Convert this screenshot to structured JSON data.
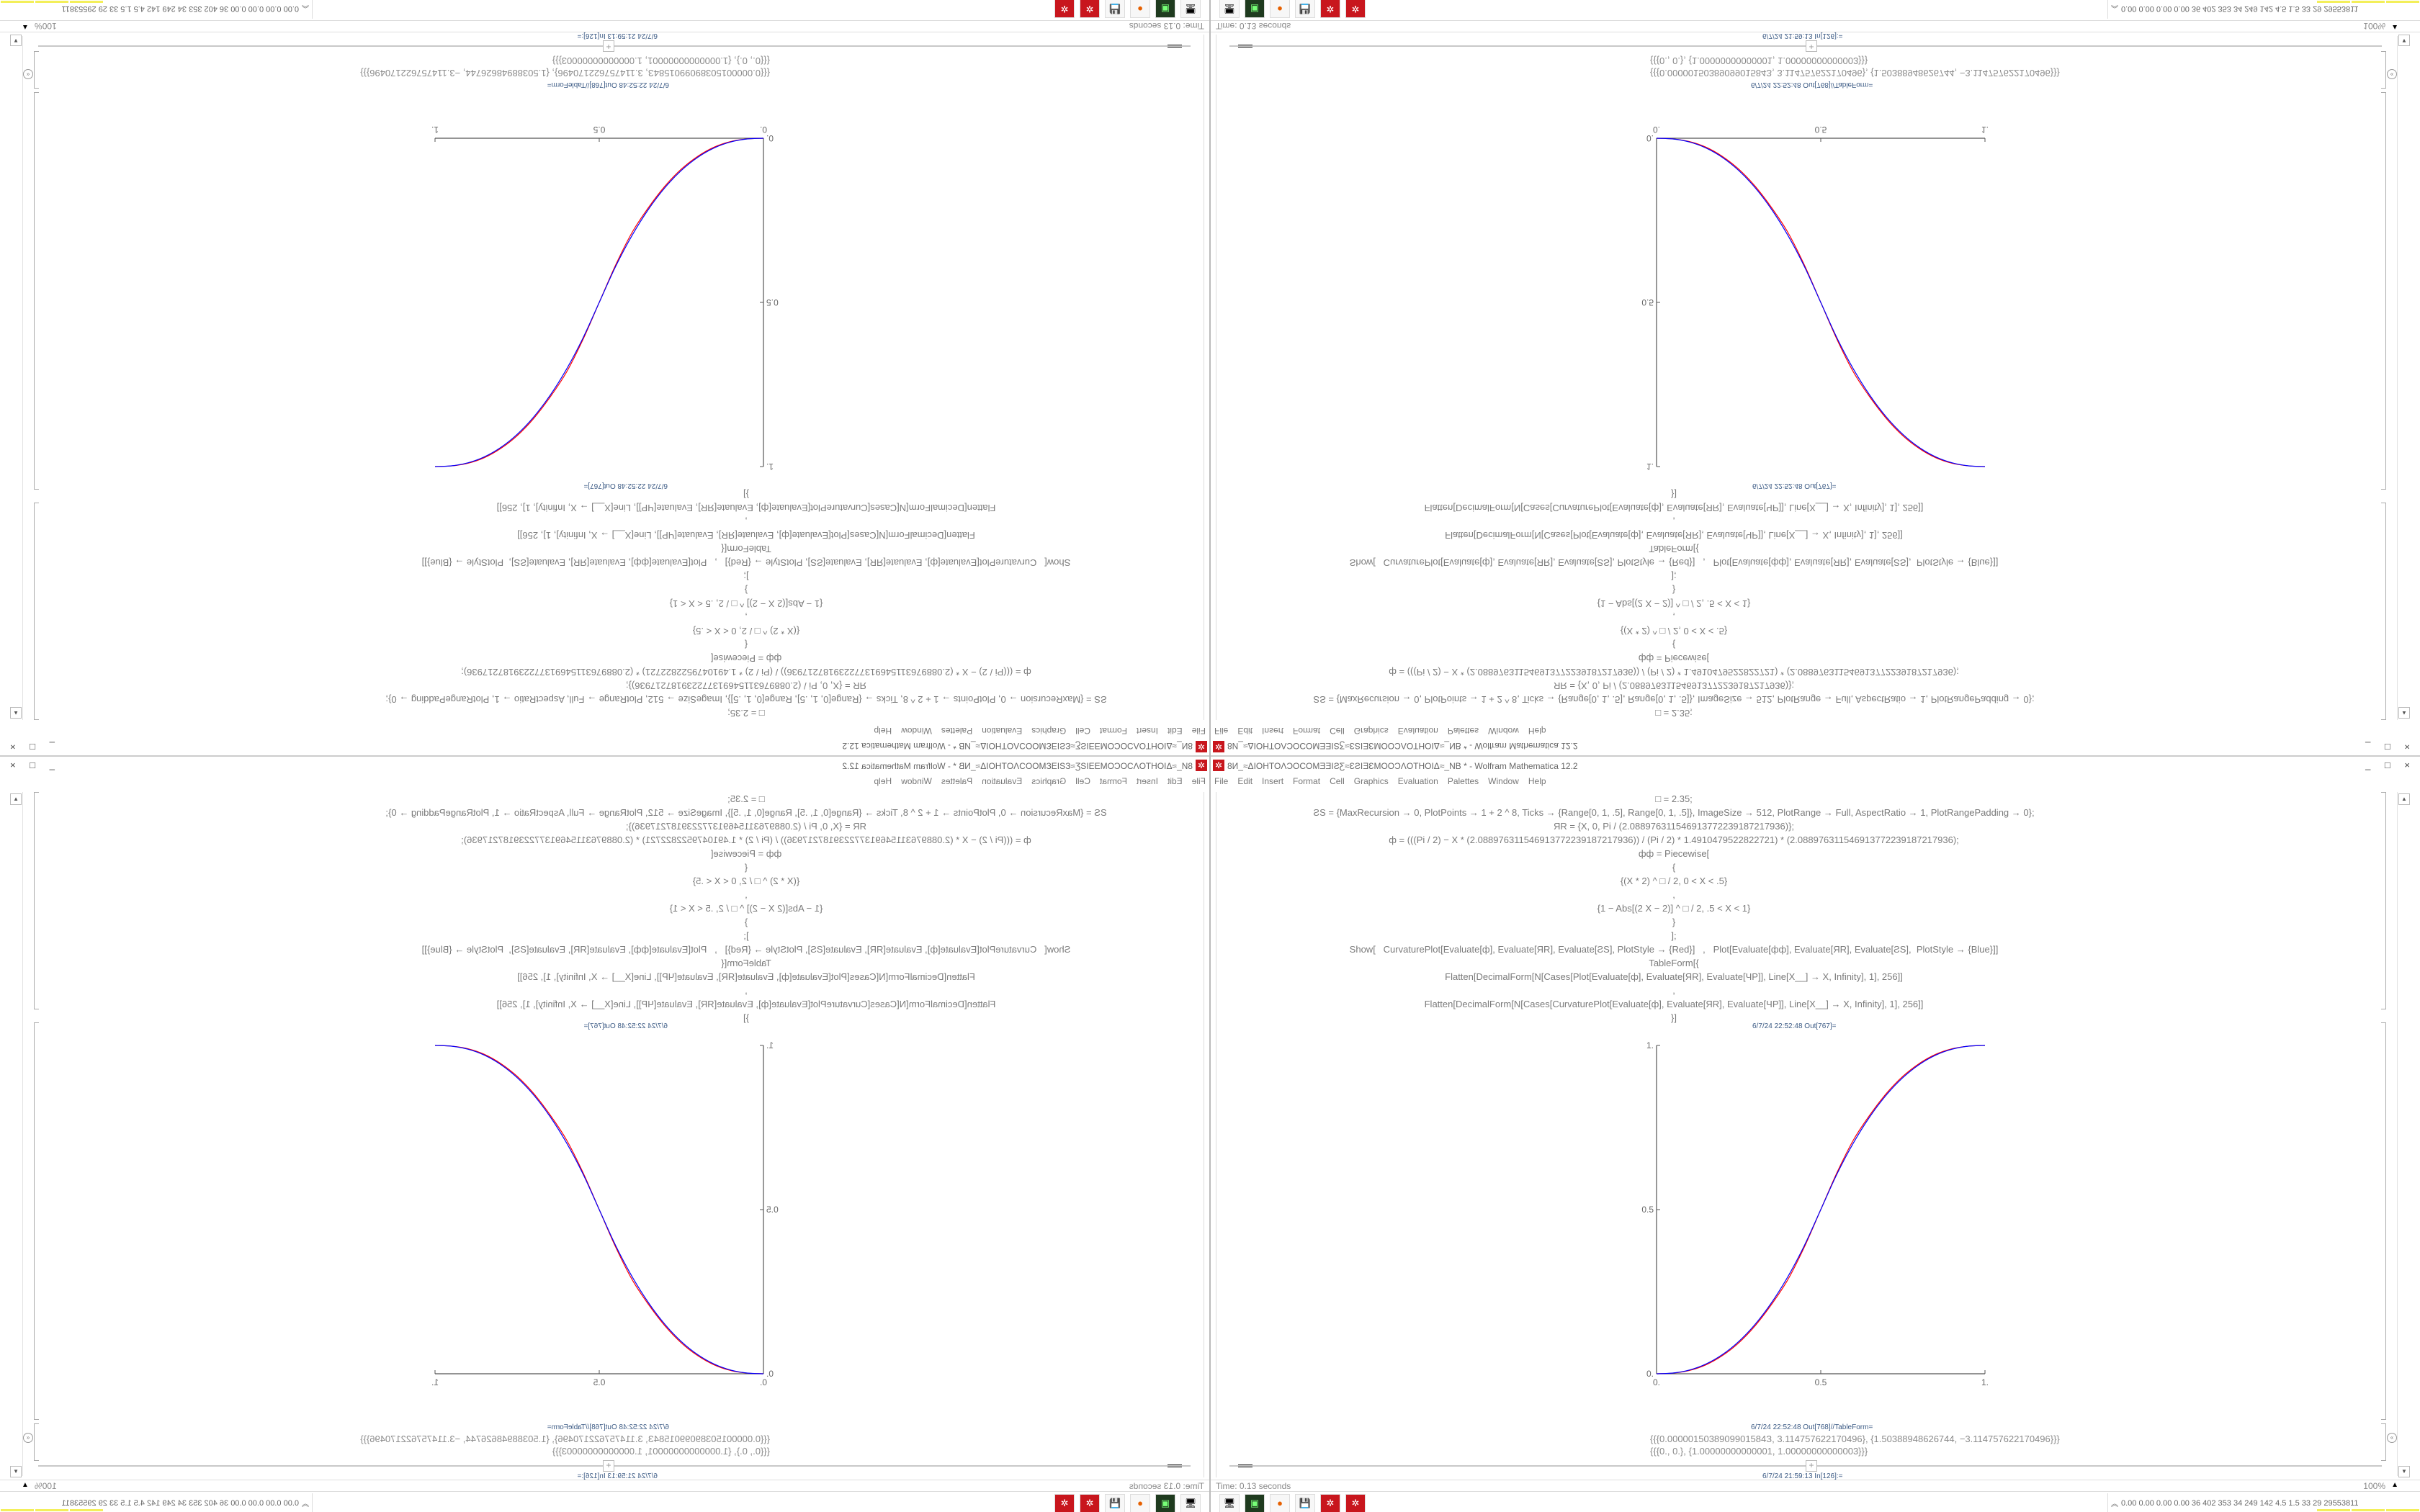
{
  "window": {
    "title": "8И_≈ΔIOHTOΛƆOCOMƎƎIƧƸ≈ƐƧIƎƐMOOƆΛOTHOIΔ≈_NB * - Wolfram Mathematica 12.2",
    "controls": "_ □ ×"
  },
  "menu": [
    "File",
    "Edit",
    "Insert",
    "Format",
    "Cell",
    "Graphics",
    "Evaluation",
    "Palettes",
    "Window",
    "Help"
  ],
  "code_lines": [
    "□ = 2.35;",
    "ƧS = {MaxRecursion → 0, PlotPoints → 1 + 2 ^ 8, Ticks → {Range[0, 1, .5], Range[0, 1, .5]}, ImageSize → 512, PlotRange → Full, AspectRatio → 1, PlotRangePadding → 0};",
    "ЯR = {X, 0, Pi / (2.088976311546913772239187217936)};",
    "ф = (((Pi / 2) − X * (2.088976311546913772239187217936)) / (Pi / 2) * 1.4910479522822721) * (2.088976311546913772239187217936);",
    "фф = Piecewise[",
    "{",
    "{(X * 2) ^ □ / 2, 0 < X < .5}",
    ",",
    "{1 − Abs[(2 X − 2)] ^ □ / 2, .5 < X < 1}",
    "}",
    "];",
    "Show[   CurvaturePlot[Evaluate[ф], Evaluate[ЯR], Evaluate[ƧS], PlotStyle → {Red}]   ,   Plot[Evaluate[фф], Evaluate[ЯR], Evaluate[ƧS],  PlotStyle → {Blue}]]",
    "TableForm[{",
    "Flatten[DecimalForm[N[Cases[Plot[Evaluate[ф], Evaluate[ЯR], Evaluate[ЧP]], Line[X__] → X, Infinity], 1], 256]]",
    ",",
    "Flatten[DecimalForm[N[Cases[CurvaturePlot[Evaluate[ф], Evaluate[ЯR], Evaluate[ЧP]], Line[X__] → X, Infinity], 1], 256]]",
    "}]"
  ],
  "labels": {
    "out767": "6/7/24 22:52:48 Out[767]=",
    "out768": "6/7/24 22:52:48 Out[768]//TableForm=",
    "in126": "6/7/24 21:59:13 In[126]:="
  },
  "output_lines": [
    "{{{0.0000015038909901584З, 3.114757622170496}, {1.50388948626744, −3.114757622170496}}}",
    "{{{0., 0.}, {1.00000000000001, 1.00000000000003}}}"
  ],
  "status": {
    "time": "Time: 0.13 seconds",
    "zoom": "100%"
  },
  "taskbar": {
    "icons": [
      "remote-desktop-icon",
      "terminal-icon",
      "firefox-icon",
      "floppy-64-icon",
      "mathematica-icon",
      "mathematica-icon"
    ],
    "tray_stats": "0.00 0.00 0.00 0.00  36  402  353  34  249  142  4.5  1.5  33  29  29553811"
  },
  "chart_data": {
    "type": "line",
    "x_ticks": [
      "0.",
      "0.5",
      "1."
    ],
    "y_ticks": [
      "0.",
      "0.5",
      "1."
    ],
    "xlim": [
      0,
      1
    ],
    "ylim": [
      0,
      1
    ],
    "grid": false,
    "x": [
      0,
      0.05,
      0.1,
      0.15,
      0.2,
      0.25,
      0.3,
      0.35,
      0.4,
      0.45,
      0.5,
      0.55,
      0.6,
      0.65,
      0.7,
      0.75,
      0.8,
      0.85,
      0.9,
      0.95,
      1
    ],
    "series": [
      {
        "color": "#ff0000",
        "values": [
          0,
          0.002,
          0.01,
          0.027,
          0.055,
          0.094,
          0.146,
          0.211,
          0.287,
          0.386,
          0.5,
          0.614,
          0.713,
          0.789,
          0.854,
          0.906,
          0.945,
          0.973,
          0.99,
          0.998,
          1
        ]
      },
      {
        "color": "#0000ff",
        "values": [
          0,
          0.0022,
          0.0114,
          0.0295,
          0.0581,
          0.0981,
          0.1505,
          0.2163,
          0.296,
          0.3904,
          0.5,
          0.6096,
          0.704,
          0.7837,
          0.8495,
          0.9019,
          0.9419,
          0.9705,
          0.9886,
          0.9978,
          1
        ]
      }
    ]
  }
}
